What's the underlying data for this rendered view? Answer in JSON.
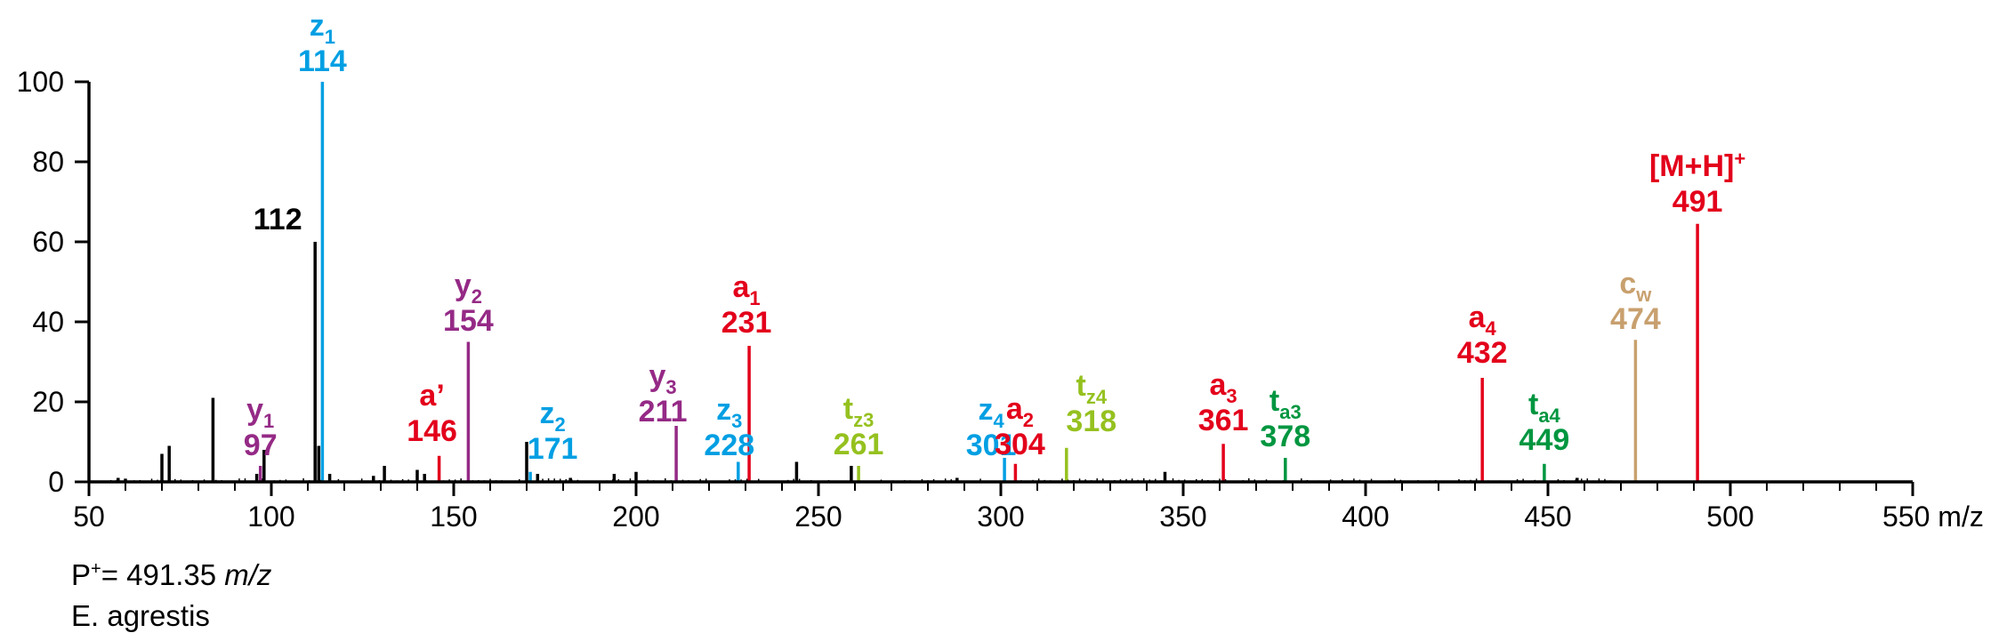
{
  "chart_data": {
    "type": "bar",
    "xlabel": "m/z",
    "ylabel": "",
    "xlim": [
      50,
      550
    ],
    "ylim": [
      0,
      100
    ],
    "xticks": [
      50,
      100,
      150,
      200,
      250,
      300,
      350,
      400,
      450,
      500,
      550
    ],
    "yticks": [
      0,
      20,
      40,
      60,
      80,
      100
    ],
    "colors": {
      "a": "#e3001b",
      "y": "#952a86",
      "z": "#009fe3",
      "tz": "#95c11f",
      "ta": "#009640",
      "cw": "#c8a06e",
      "other": "#000000"
    },
    "annotated_peaks": [
      {
        "ion": "y",
        "sub": "1",
        "sup": "",
        "mz": 97,
        "intensity": 4,
        "label": "97",
        "color_key": "y"
      },
      {
        "ion": "",
        "sub": "",
        "sup": "",
        "mz": 112,
        "intensity": 60,
        "label": "112",
        "color_key": "other"
      },
      {
        "ion": "z",
        "sub": "1",
        "sup": "",
        "mz": 114,
        "intensity": 100,
        "label": "114",
        "color_key": "z"
      },
      {
        "ion": "a’",
        "sub": "",
        "sup": "",
        "mz": 146,
        "intensity": 6.5,
        "label": "146",
        "color_key": "a"
      },
      {
        "ion": "y",
        "sub": "2",
        "sup": "",
        "mz": 154,
        "intensity": 35,
        "label": "154",
        "color_key": "y"
      },
      {
        "ion": "z",
        "sub": "2",
        "sup": "",
        "mz": 171,
        "intensity": 2.5,
        "label": "171",
        "color_key": "z"
      },
      {
        "ion": "y",
        "sub": "3",
        "sup": "",
        "mz": 211,
        "intensity": 14,
        "label": "211",
        "color_key": "y"
      },
      {
        "ion": "z",
        "sub": "3",
        "sup": "",
        "mz": 228,
        "intensity": 5,
        "label": "228",
        "color_key": "z"
      },
      {
        "ion": "a",
        "sub": "1",
        "sup": "",
        "mz": 231,
        "intensity": 34,
        "label": "231",
        "color_key": "a"
      },
      {
        "ion": "t",
        "sub": "z3",
        "sup": "",
        "mz": 261,
        "intensity": 4,
        "label": "261",
        "color_key": "tz"
      },
      {
        "ion": "z",
        "sub": "4",
        "sup": "",
        "mz": 301,
        "intensity": 6,
        "label": "301",
        "color_key": "z"
      },
      {
        "ion": "a",
        "sub": "2",
        "sup": "",
        "mz": 304,
        "intensity": 4.5,
        "label": "304",
        "color_key": "a"
      },
      {
        "ion": "t",
        "sub": "z4",
        "sup": "",
        "mz": 318,
        "intensity": 8.5,
        "label": "318",
        "color_key": "tz"
      },
      {
        "ion": "a",
        "sub": "3",
        "sup": "",
        "mz": 361,
        "intensity": 9.5,
        "label": "361",
        "color_key": "a"
      },
      {
        "ion": "t",
        "sub": "a3",
        "sup": "",
        "mz": 378,
        "intensity": 6,
        "label": "378",
        "color_key": "ta"
      },
      {
        "ion": "a",
        "sub": "4",
        "sup": "",
        "mz": 432,
        "intensity": 26,
        "label": "432",
        "color_key": "a"
      },
      {
        "ion": "t",
        "sub": "a4",
        "sup": "",
        "mz": 449,
        "intensity": 4.5,
        "label": "449",
        "color_key": "ta"
      },
      {
        "ion": "c",
        "sub": "w",
        "sup": "",
        "mz": 474,
        "intensity": 35.5,
        "label": "474",
        "color_key": "cw"
      },
      {
        "ion": "[M+H]",
        "sub": "",
        "sup": "+",
        "mz": 491,
        "intensity": 64.5,
        "label": "491",
        "color_key": "a"
      }
    ],
    "background_peaks": [
      {
        "mz": 58,
        "intensity": 1
      },
      {
        "mz": 60,
        "intensity": 0.8
      },
      {
        "mz": 70,
        "intensity": 7
      },
      {
        "mz": 72,
        "intensity": 9
      },
      {
        "mz": 84,
        "intensity": 21
      },
      {
        "mz": 96,
        "intensity": 2
      },
      {
        "mz": 98,
        "intensity": 8
      },
      {
        "mz": 113,
        "intensity": 9
      },
      {
        "mz": 116,
        "intensity": 2
      },
      {
        "mz": 128,
        "intensity": 1.5
      },
      {
        "mz": 131,
        "intensity": 4
      },
      {
        "mz": 140,
        "intensity": 3
      },
      {
        "mz": 142,
        "intensity": 2
      },
      {
        "mz": 170,
        "intensity": 10
      },
      {
        "mz": 173,
        "intensity": 2
      },
      {
        "mz": 182,
        "intensity": 1
      },
      {
        "mz": 194,
        "intensity": 2
      },
      {
        "mz": 200,
        "intensity": 2.5
      },
      {
        "mz": 244,
        "intensity": 5
      },
      {
        "mz": 259,
        "intensity": 4
      },
      {
        "mz": 288,
        "intensity": 1
      },
      {
        "mz": 345,
        "intensity": 2.5
      },
      {
        "mz": 458,
        "intensity": 1
      }
    ]
  },
  "footer": {
    "precursor_prefix": "P",
    "precursor_sup": "+",
    "precursor_value": "= 491.35",
    "precursor_unit": "m/z",
    "species": "E. agrestis"
  }
}
